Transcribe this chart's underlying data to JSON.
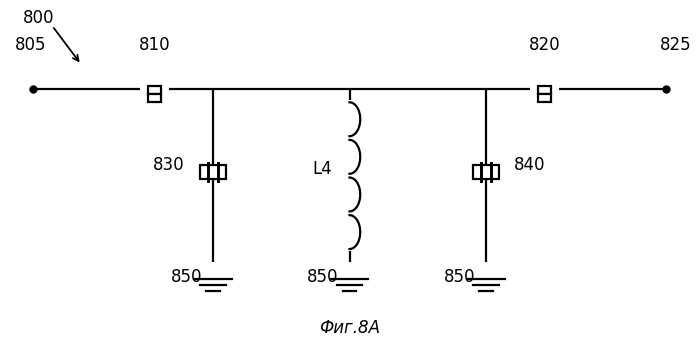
{
  "title": "Фиг.8А",
  "bg_color": "#ffffff",
  "line_color": "#000000",
  "label_800": "800",
  "label_805": "805",
  "label_810": "810",
  "label_820": "820",
  "label_825": "825",
  "label_830": "830",
  "label_840": "840",
  "label_850": "850",
  "label_L4": "L4",
  "xlim": [
    0,
    14
  ],
  "ylim": [
    0,
    7
  ],
  "y_main": 5.2,
  "x_left_port": 0.5,
  "x_ind1": 3.0,
  "x_sh1": 4.2,
  "x_sh2": 7.0,
  "x_sh3": 9.8,
  "x_ind2": 11.0,
  "x_right_port": 13.5,
  "y_cap_center": 3.5,
  "y_gnd_bot": 1.4,
  "y_gnd_line": 1.3
}
